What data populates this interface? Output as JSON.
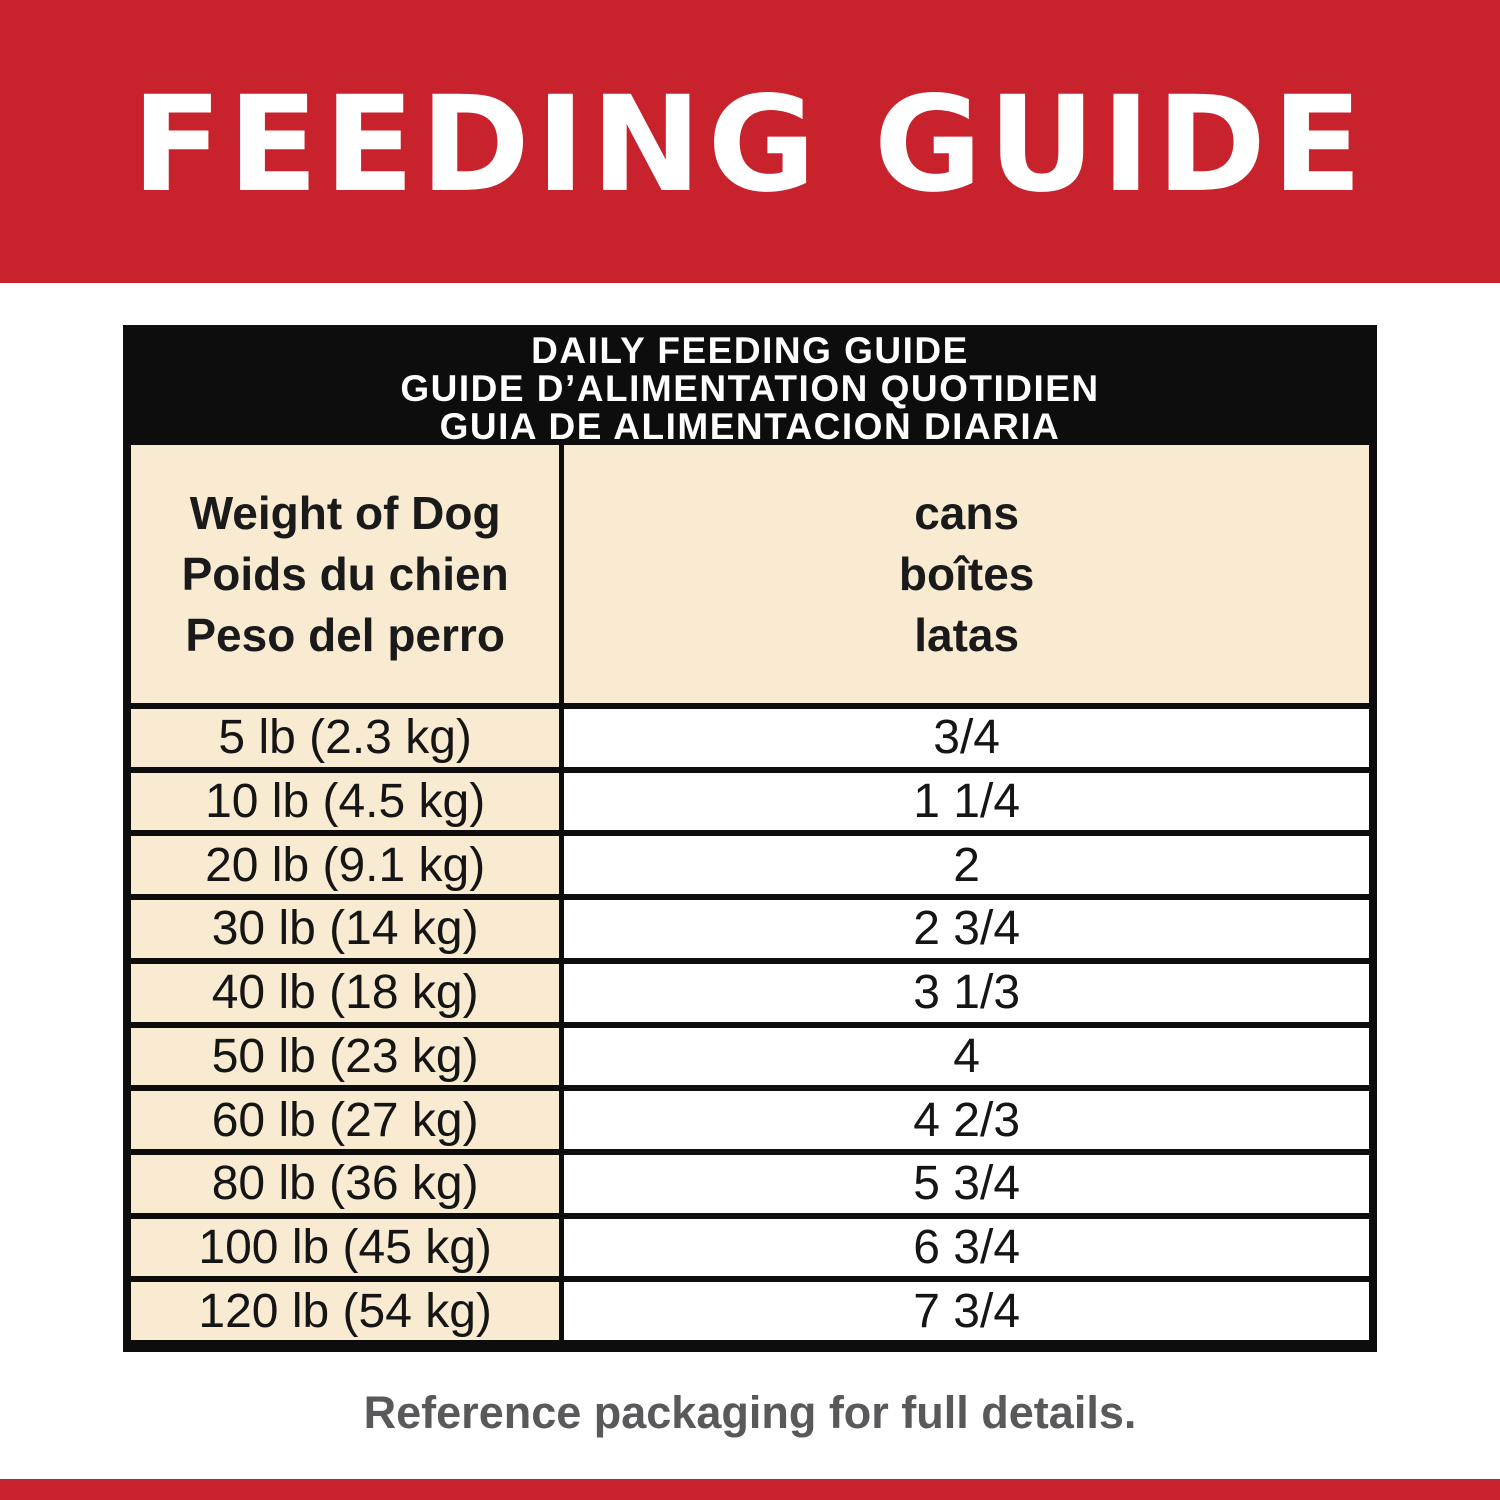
{
  "banner": {
    "title": "FEEDING GUIDE",
    "bg_color": "#C8232C",
    "text_color": "#FFFFFF"
  },
  "table": {
    "header_lines": [
      "DAILY FEEDING GUIDE",
      "GUIDE D’ALIMENTATION QUOTIDIEN",
      "GUIA DE ALIMENTACION DIARIA"
    ],
    "columns": {
      "weight": {
        "lines": [
          "Weight of Dog",
          "Poids du chien",
          "Peso del perro"
        ]
      },
      "cans": {
        "lines": [
          "cans",
          "boîtes",
          "latas"
        ]
      }
    },
    "rows": [
      {
        "weight": "5 lb (2.3 kg)",
        "cans": "3/4"
      },
      {
        "weight": "10 lb (4.5 kg)",
        "cans": "1 1/4"
      },
      {
        "weight": "20 lb (9.1 kg)",
        "cans": "2"
      },
      {
        "weight": "30 lb (14 kg)",
        "cans": "2 3/4"
      },
      {
        "weight": "40 lb (18 kg)",
        "cans": "3 1/3"
      },
      {
        "weight": "50 lb (23 kg)",
        "cans": "4"
      },
      {
        "weight": "60 lb (27 kg)",
        "cans": "4 2/3"
      },
      {
        "weight": "80 lb (36 kg)",
        "cans": "5 3/4"
      },
      {
        "weight": "100 lb (45 kg)",
        "cans": "6 3/4"
      },
      {
        "weight": "120 lb (54 kg)",
        "cans": "7 3/4"
      }
    ],
    "colors": {
      "cream": "#F8EBD1",
      "row_white": "#FFFFFF",
      "border_black": "#0D0D0D",
      "header_text": "#FFFFFF"
    }
  },
  "footer": {
    "note": "Reference packaging for full details.",
    "text_color": "#59595B",
    "strip_color": "#C8232C"
  }
}
